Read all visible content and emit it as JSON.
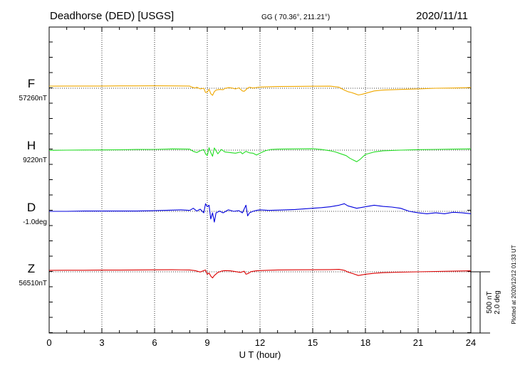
{
  "header": {
    "station": "Deadhorse (DED)  [USGS]",
    "coords": "GG ( 70.36°, 211.21°)",
    "date": "2020/11/11"
  },
  "side_note": "Plotted at 2020/12/12 01:33 UT",
  "scale_bar": {
    "line1": "500 nT",
    "line2": "2.0 deg"
  },
  "chart_data": {
    "type": "line",
    "xlabel": "U T (hour)",
    "xlim": [
      0,
      24
    ],
    "x_ticks": [
      0,
      3,
      6,
      9,
      12,
      15,
      18,
      21,
      24
    ],
    "x_tick_labels": [
      "0",
      "3",
      "6",
      "9",
      "12",
      "15",
      "18",
      "21",
      "24"
    ],
    "grid": true,
    "panel_scale": "500 nT / 2.0 deg per scale bar",
    "series": [
      {
        "name": "F",
        "baseline_label": "57260nT",
        "baseline": 57260,
        "unit": "nT",
        "color": "#f0a800",
        "x": [
          0,
          1,
          2,
          3,
          4,
          5,
          6,
          7,
          8,
          8.1,
          8.3,
          8.4,
          8.6,
          8.8,
          8.9,
          9.0,
          9.1,
          9.2,
          9.3,
          9.4,
          9.5,
          9.7,
          9.9,
          10.0,
          10.2,
          10.4,
          10.6,
          10.8,
          11.0,
          11.1,
          11.2,
          11.3,
          11.4,
          11.6,
          11.8,
          12.0,
          12.5,
          13,
          14,
          15,
          16,
          16.5,
          16.8,
          17.0,
          17.2,
          17.4,
          17.6,
          17.8,
          18.0,
          18.5,
          19,
          20,
          21,
          22,
          23,
          24
        ],
        "values": [
          57277,
          57278,
          57278,
          57278,
          57279,
          57279,
          57280,
          57279,
          57278,
          57270,
          57262,
          57268,
          57255,
          57260,
          57225,
          57228,
          57252,
          57215,
          57202,
          57232,
          57245,
          57250,
          57248,
          57258,
          57265,
          57262,
          57254,
          57263,
          57238,
          57235,
          57248,
          57261,
          57268,
          57262,
          57266,
          57270,
          57272,
          57274,
          57275,
          57276,
          57277,
          57268,
          57245,
          57232,
          57225,
          57215,
          57205,
          57210,
          57218,
          57238,
          57245,
          57250,
          57255,
          57260,
          57262,
          57265
        ]
      },
      {
        "name": "H",
        "baseline_label": "9220nT",
        "baseline": 9220,
        "unit": "nT",
        "color": "#22dd22",
        "x": [
          0,
          1,
          2,
          3,
          4,
          5,
          6,
          7,
          8,
          8.2,
          8.4,
          8.6,
          8.8,
          8.9,
          9.0,
          9.1,
          9.2,
          9.3,
          9.4,
          9.6,
          9.8,
          10.0,
          10.3,
          10.6,
          10.9,
          11.0,
          11.2,
          11.4,
          11.6,
          11.8,
          12.0,
          12.3,
          12.6,
          13,
          14,
          15,
          15.5,
          16,
          16.3,
          16.6,
          16.9,
          17.1,
          17.3,
          17.5,
          17.7,
          18.0,
          18.5,
          19,
          20,
          21,
          22,
          23,
          24
        ],
        "values": [
          9218,
          9220,
          9221,
          9222,
          9223,
          9225,
          9226,
          9230,
          9228,
          9210,
          9200,
          9215,
          9225,
          9190,
          9175,
          9240,
          9200,
          9170,
          9238,
          9190,
          9225,
          9205,
          9200,
          9195,
          9205,
          9190,
          9210,
          9198,
          9195,
          9180,
          9195,
          9215,
          9225,
          9228,
          9230,
          9231,
          9225,
          9215,
          9205,
          9190,
          9175,
          9155,
          9140,
          9125,
          9145,
          9185,
          9205,
          9215,
          9220,
          9224,
          9226,
          9228,
          9230
        ]
      },
      {
        "name": "D",
        "baseline_label": "-1.0deg",
        "baseline": -1.0,
        "unit": "deg",
        "color": "#0000dd",
        "x": [
          0,
          1,
          2,
          3,
          4,
          5,
          6,
          7,
          7.5,
          8,
          8.2,
          8.4,
          8.6,
          8.8,
          8.9,
          9.0,
          9.1,
          9.2,
          9.3,
          9.4,
          9.5,
          9.7,
          9.9,
          10.2,
          10.5,
          10.8,
          11.0,
          11.2,
          11.3,
          11.4,
          11.6,
          11.8,
          12.0,
          12.5,
          13,
          14,
          15,
          15.5,
          16,
          16.5,
          16.8,
          17.0,
          17.5,
          18.0,
          18.5,
          19,
          19.5,
          20,
          20.5,
          21,
          21.5,
          22,
          22.5,
          23,
          23.5,
          24
        ],
        "values": [
          -1.0,
          -1.0,
          -0.99,
          -0.99,
          -0.99,
          -0.99,
          -0.98,
          -0.96,
          -0.95,
          -0.97,
          -0.9,
          -0.99,
          -0.93,
          -1.05,
          -0.75,
          -0.85,
          -0.8,
          -1.25,
          -1.05,
          -1.35,
          -1.05,
          -0.99,
          -1.05,
          -0.95,
          -1.0,
          -0.98,
          -1.05,
          -0.8,
          -1.15,
          -1.05,
          -1.0,
          -0.97,
          -0.95,
          -0.97,
          -0.96,
          -0.94,
          -0.9,
          -0.88,
          -0.85,
          -0.8,
          -0.75,
          -0.82,
          -0.9,
          -0.85,
          -0.8,
          -0.84,
          -0.86,
          -0.9,
          -1.0,
          -1.05,
          -1.08,
          -1.05,
          -1.08,
          -1.03,
          -1.05,
          -1.08
        ]
      },
      {
        "name": "Z",
        "baseline_label": "56510nT",
        "baseline": 56510,
        "unit": "nT",
        "color": "#dd0000",
        "x": [
          0,
          1,
          2,
          3,
          4,
          5,
          6,
          7,
          8,
          8.3,
          8.6,
          8.9,
          9.0,
          9.1,
          9.2,
          9.3,
          9.4,
          9.6,
          9.8,
          10.0,
          10.3,
          10.6,
          10.9,
          11.1,
          11.2,
          11.3,
          11.5,
          11.8,
          12.0,
          12.5,
          13,
          14,
          15,
          16,
          16.5,
          16.8,
          17.0,
          17.3,
          17.6,
          17.8,
          18.0,
          18.5,
          19,
          20,
          21,
          22,
          23,
          24
        ],
        "values": [
          56522,
          56523,
          56523,
          56524,
          56524,
          56525,
          56526,
          56527,
          56525,
          56520,
          56508,
          56525,
          56490,
          56500,
          56475,
          56460,
          56480,
          56505,
          56515,
          56520,
          56518,
          56512,
          56505,
          56515,
          56490,
          56495,
          56512,
          56518,
          56520,
          56523,
          56525,
          56526,
          56527,
          56528,
          56530,
          56522,
          56508,
          56495,
          56480,
          56485,
          56490,
          56498,
          56503,
          56507,
          56510,
          56513,
          56515,
          56518
        ]
      }
    ]
  }
}
